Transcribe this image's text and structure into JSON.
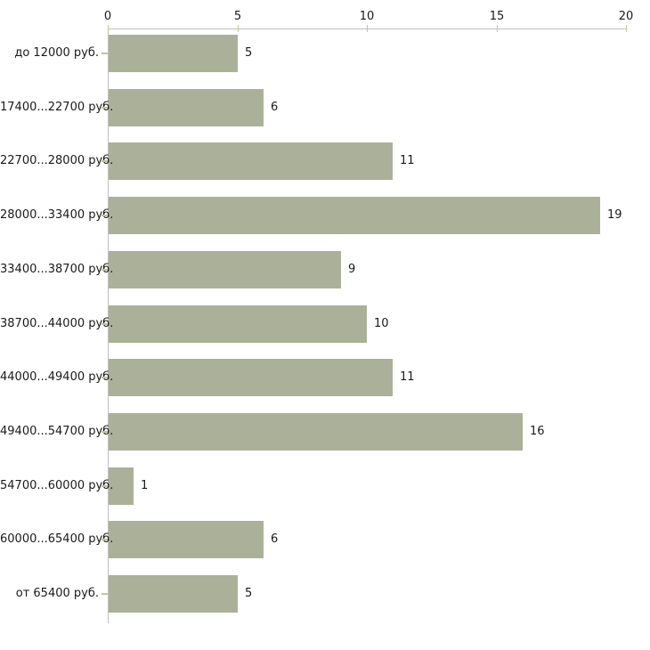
{
  "chart_data": {
    "type": "bar",
    "orientation": "horizontal",
    "title": "",
    "xlabel": "",
    "ylabel": "",
    "categories": [
      "до 12000 руб.",
      "17400...22700 руб.",
      "22700...28000 руб.",
      "28000...33400 руб.",
      "33400...38700 руб.",
      "38700...44000 руб.",
      "44000...49400 руб.",
      "49400...54700 руб.",
      "54700...60000 руб.",
      "60000...65400 руб.",
      "от 65400 руб."
    ],
    "values": [
      5,
      6,
      11,
      19,
      9,
      10,
      11,
      16,
      1,
      6,
      5
    ],
    "value_labels": [
      "5",
      "6",
      "11",
      "19",
      "9",
      "10",
      "11",
      "16",
      "1",
      "6",
      "5"
    ],
    "xlim": [
      0,
      20
    ],
    "x_ticks": [
      0,
      5,
      10,
      15,
      20
    ],
    "x_tick_labels": [
      "0",
      "5",
      "10",
      "15",
      "20"
    ],
    "axis_position": "top",
    "grid": false,
    "legend": null,
    "colors": {
      "bar": "#abb198",
      "axis_line": "#c0c0c0",
      "tick_mark": "#c5c696",
      "text": "#1a1a1a",
      "background": "#ffffff"
    }
  }
}
